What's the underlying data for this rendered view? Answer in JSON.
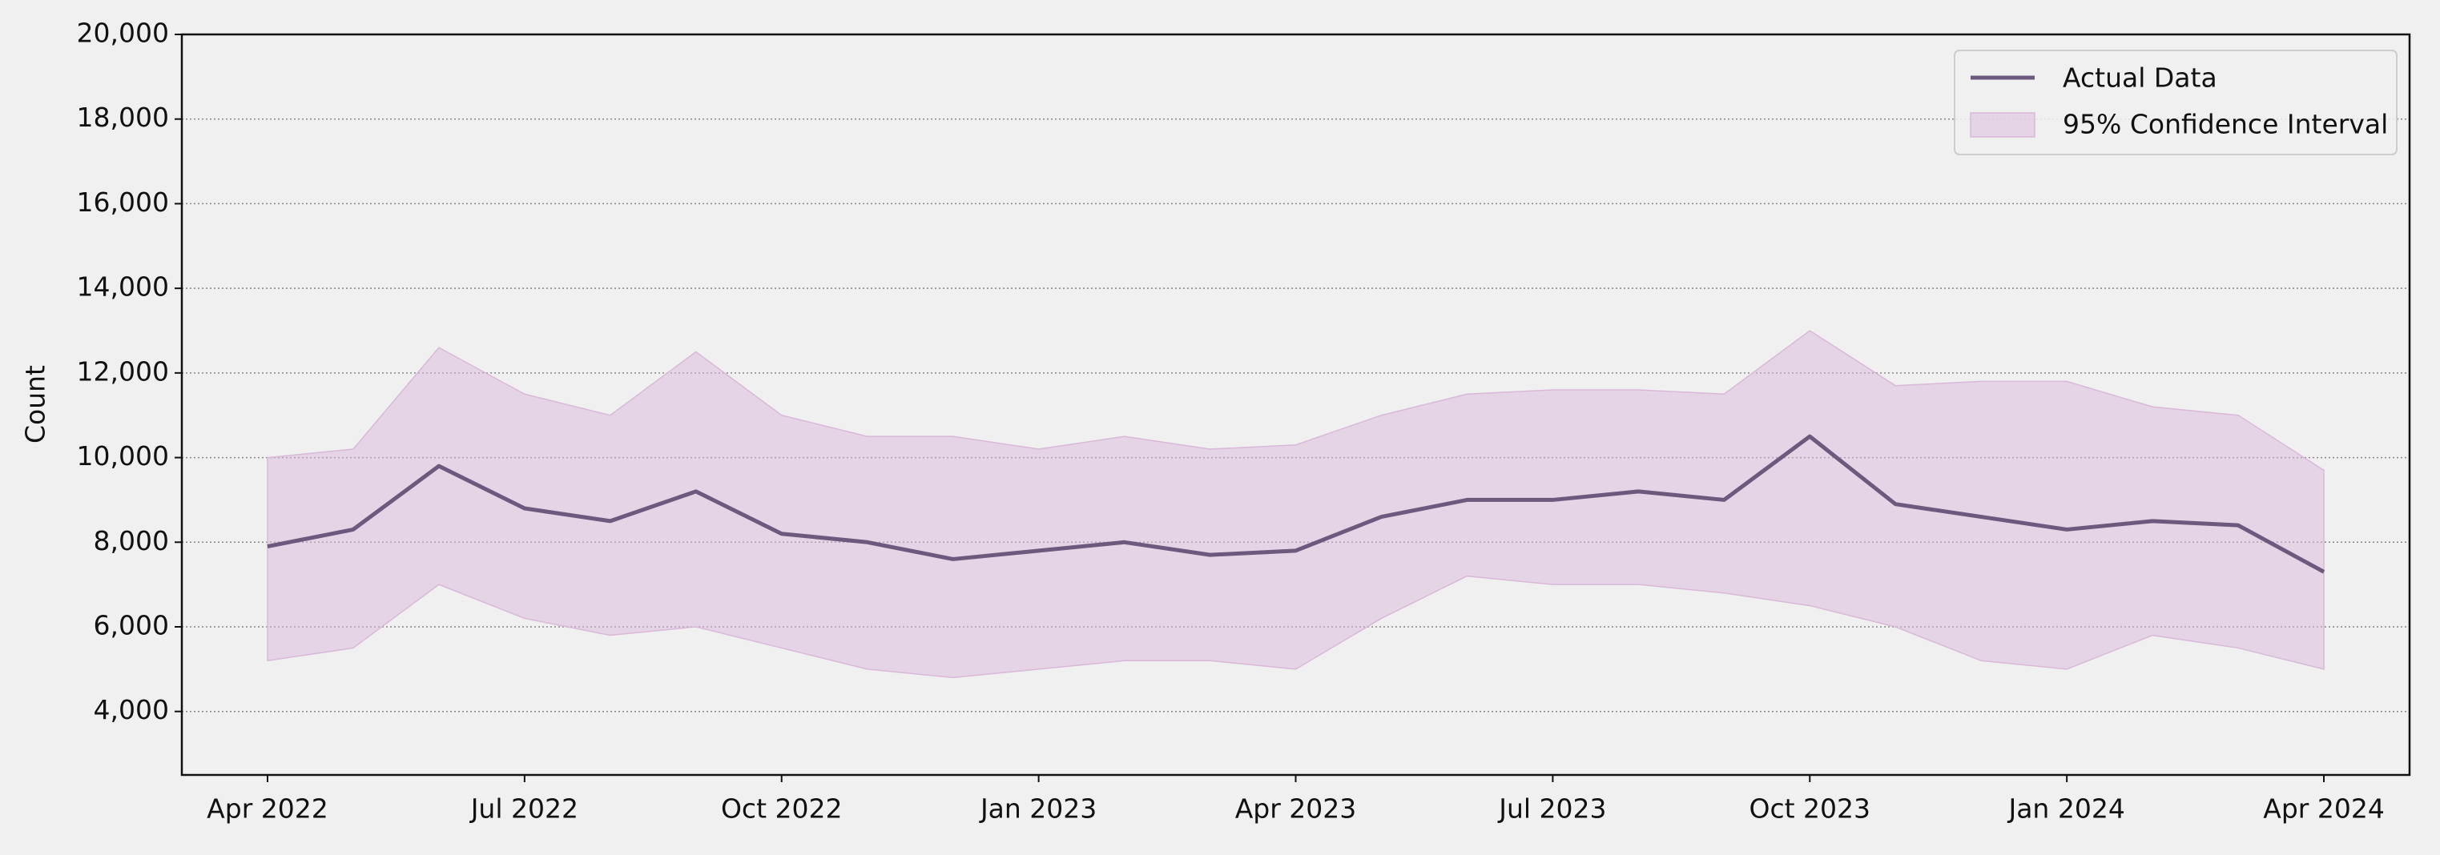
{
  "chart_data": {
    "type": "line",
    "y_label": "Count",
    "x": [
      "2022-04",
      "2022-05",
      "2022-06",
      "2022-07",
      "2022-08",
      "2022-09",
      "2022-10",
      "2022-11",
      "2022-12",
      "2023-01",
      "2023-02",
      "2023-03",
      "2023-04",
      "2023-05",
      "2023-06",
      "2023-07",
      "2023-08",
      "2023-09",
      "2023-10",
      "2023-11",
      "2023-12",
      "2024-01",
      "2024-02",
      "2024-03",
      "2024-04"
    ],
    "series": [
      {
        "name": "Actual Data",
        "color": "#6b5a7e",
        "values": [
          7900,
          8300,
          9800,
          8800,
          8500,
          9200,
          8200,
          8000,
          7600,
          7800,
          8000,
          7700,
          7800,
          8600,
          9000,
          9000,
          9200,
          9000,
          10500,
          8900,
          8600,
          8300,
          8500,
          8400,
          7300
        ]
      }
    ],
    "band": {
      "name": "95% Confidence Interval",
      "color": "#d9b8d9",
      "lower": [
        5200,
        5500,
        7000,
        6200,
        5800,
        6000,
        5500,
        5000,
        4800,
        5000,
        5200,
        5200,
        5000,
        6200,
        7200,
        7000,
        7000,
        6800,
        6500,
        6000,
        5200,
        5000,
        5800,
        5500,
        5000
      ],
      "upper": [
        10000,
        10200,
        12600,
        11500,
        11000,
        12500,
        11000,
        10500,
        10500,
        10200,
        10500,
        10200,
        10300,
        11000,
        11500,
        11600,
        11600,
        11500,
        13000,
        11700,
        11800,
        11800,
        11200,
        11000,
        9700
      ]
    },
    "xlim": [
      "2022-03",
      "2024-05"
    ],
    "xticks": [
      {
        "value": "2022-04",
        "label": "Apr 2022"
      },
      {
        "value": "2022-07",
        "label": "Jul 2022"
      },
      {
        "value": "2022-10",
        "label": "Oct 2022"
      },
      {
        "value": "2023-01",
        "label": "Jan 2023"
      },
      {
        "value": "2023-04",
        "label": "Apr 2023"
      },
      {
        "value": "2023-07",
        "label": "Jul 2023"
      },
      {
        "value": "2023-10",
        "label": "Oct 2023"
      },
      {
        "value": "2024-01",
        "label": "Jan 2024"
      },
      {
        "value": "2024-04",
        "label": "Apr 2024"
      }
    ],
    "ylim": [
      2500,
      20000
    ],
    "yticks": [
      {
        "value": 4000,
        "label": "4,000"
      },
      {
        "value": 6000,
        "label": "6,000"
      },
      {
        "value": 8000,
        "label": "8,000"
      },
      {
        "value": 10000,
        "label": "10,000"
      },
      {
        "value": 12000,
        "label": "12,000"
      },
      {
        "value": 14000,
        "label": "14,000"
      },
      {
        "value": 16000,
        "label": "16,000"
      },
      {
        "value": 18000,
        "label": "18,000"
      },
      {
        "value": 20000,
        "label": "20,000"
      }
    ],
    "grid": true,
    "legend": "upper right"
  }
}
